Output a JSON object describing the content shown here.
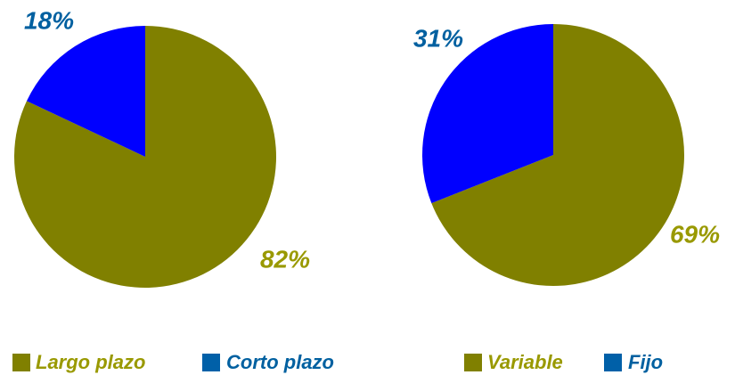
{
  "chart_data": [
    {
      "type": "pie",
      "categories": [
        "Largo plazo",
        "Corto plazo"
      ],
      "values": [
        82,
        18
      ],
      "value_labels": [
        "82%",
        "18%"
      ],
      "colors": [
        "#808000",
        "#0000ff"
      ],
      "label_colors": [
        "#999900",
        "#0060a0"
      ]
    },
    {
      "type": "pie",
      "categories": [
        "Variable",
        "Fijo"
      ],
      "values": [
        69,
        31
      ],
      "value_labels": [
        "69%",
        "31%"
      ],
      "colors": [
        "#808000",
        "#0000ff"
      ],
      "label_colors": [
        "#999900",
        "#0060a0"
      ]
    }
  ]
}
